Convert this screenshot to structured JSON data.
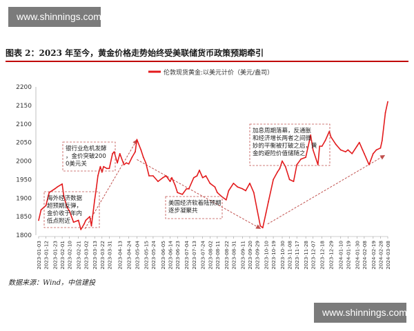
{
  "watermarks": {
    "top": "www.shinnings.com",
    "bottom": "www.shinnings.com"
  },
  "figure_title": "图表 2：2023 年至今，黄金价格走势始终受美联储货币政策预期牵引",
  "source": "数据来源：Wind，中信建投",
  "colors": {
    "line": "#e31a1c",
    "title_rule": "#c00000",
    "annotation_border": "#c0504d",
    "arrow": "#c0504d"
  },
  "annotations": [
    {
      "id": "overseas",
      "text": "海外经济数据超预期反弹，金价收于年内低点附近"
    },
    {
      "id": "bank-crisis",
      "text": "银行业危机发酵，金价突破2000美元关口"
    },
    {
      "id": "soft-landing",
      "text": "美国经济软着陆预期逐步凝聚共"
    },
    {
      "id": "rate-peak",
      "text": "加息周期落幕，反通胀和经济增长两者之间微妙的平衡被打破之后，黄金的避险价值储随之提振。"
    }
  ],
  "chart_data": {
    "type": "line",
    "legend": "伦敦现货黄金:以美元计价（美元/盎司）",
    "legend_position": "top",
    "ylim": [
      1800,
      2200
    ],
    "yticks": [
      1800,
      1850,
      1900,
      1950,
      2000,
      2050,
      2100,
      2150,
      2200
    ],
    "grid": false,
    "xticks": [
      "2023-01-03",
      "2023-01-12",
      "2023-01-23",
      "2023-02-01",
      "2023-02-10",
      "2023-02-21",
      "2023-03-02",
      "2023-03-13",
      "2023-03-22",
      "2023-03-31",
      "2023-04-13",
      "2023-04-24",
      "2023-05-04",
      "2023-05-15",
      "2023-05-24",
      "2023-06-05",
      "2023-06-14",
      "2023-06-23",
      "2023-07-04",
      "2023-07-13",
      "2023-07-24",
      "2023-08-02",
      "2023-08-11",
      "2023-08-22",
      "2023-08-31",
      "2023-09-11",
      "2023-09-20",
      "2023-09-29",
      "2023-10-10",
      "2023-10-19",
      "2023-10-30",
      "2023-11-08",
      "2023-11-17",
      "2023-11-28",
      "2023-12-07",
      "2023-12-18",
      "2023-12-29",
      "2024-01-10",
      "2024-01-19",
      "2024-01-30",
      "2024-02-08",
      "2024-02-19",
      "2024-02-28",
      "2024-03-08"
    ],
    "series": [
      {
        "name": "伦敦现货黄金:以美元计价（美元/盎司）",
        "x": [
          "2023-01-03",
          "2023-01-06",
          "2023-01-12",
          "2023-01-16",
          "2023-01-23",
          "2023-01-26",
          "2023-02-01",
          "2023-02-03",
          "2023-02-07",
          "2023-02-10",
          "2023-02-15",
          "2023-02-21",
          "2023-02-24",
          "2023-02-28",
          "2023-03-02",
          "2023-03-07",
          "2023-03-09",
          "2023-03-13",
          "2023-03-15",
          "2023-03-17",
          "2023-03-20",
          "2023-03-22",
          "2023-03-24",
          "2023-03-28",
          "2023-03-31",
          "2023-04-04",
          "2023-04-06",
          "2023-04-10",
          "2023-04-13",
          "2023-04-18",
          "2023-04-21",
          "2023-04-24",
          "2023-04-28",
          "2023-05-02",
          "2023-05-04",
          "2023-05-09",
          "2023-05-12",
          "2023-05-15",
          "2023-05-19",
          "2023-05-24",
          "2023-05-30",
          "2023-06-05",
          "2023-06-09",
          "2023-06-14",
          "2023-06-16",
          "2023-06-20",
          "2023-06-23",
          "2023-06-29",
          "2023-07-04",
          "2023-07-07",
          "2023-07-13",
          "2023-07-17",
          "2023-07-20",
          "2023-07-24",
          "2023-07-28",
          "2023-08-02",
          "2023-08-08",
          "2023-08-11",
          "2023-08-16",
          "2023-08-22",
          "2023-08-25",
          "2023-08-31",
          "2023-09-05",
          "2023-09-11",
          "2023-09-15",
          "2023-09-20",
          "2023-09-25",
          "2023-09-29",
          "2023-10-03",
          "2023-10-06",
          "2023-10-10",
          "2023-10-13",
          "2023-10-19",
          "2023-10-24",
          "2023-10-27",
          "2023-10-30",
          "2023-11-03",
          "2023-11-08",
          "2023-11-13",
          "2023-11-17",
          "2023-11-22",
          "2023-11-28",
          "2023-12-01",
          "2023-12-04",
          "2023-12-07",
          "2023-12-13",
          "2023-12-15",
          "2023-12-18",
          "2023-12-22",
          "2023-12-27",
          "2023-12-29",
          "2024-01-04",
          "2024-01-10",
          "2024-01-16",
          "2024-01-19",
          "2024-01-24",
          "2024-01-30",
          "2024-02-02",
          "2024-02-06",
          "2024-02-08",
          "2024-02-14",
          "2024-02-19",
          "2024-02-23",
          "2024-02-28",
          "2024-03-01",
          "2024-03-05",
          "2024-03-08"
        ],
        "values": [
          1840,
          1868,
          1880,
          1915,
          1925,
          1930,
          1938,
          1905,
          1875,
          1865,
          1835,
          1840,
          1815,
          1830,
          1840,
          1850,
          1825,
          1895,
          1925,
          1960,
          1985,
          1970,
          1985,
          1980,
          1980,
          2020,
          2025,
          1995,
          2020,
          1990,
          1995,
          1992,
          2010,
          2025,
          2058,
          2030,
          2010,
          1995,
          1960,
          1960,
          1945,
          1955,
          1960,
          1945,
          1955,
          1935,
          1915,
          1910,
          1925,
          1925,
          1955,
          1960,
          1975,
          1955,
          1960,
          1940,
          1930,
          1915,
          1905,
          1895,
          1920,
          1940,
          1930,
          1925,
          1920,
          1940,
          1915,
          1870,
          1825,
          1820,
          1860,
          1890,
          1950,
          1970,
          1980,
          2000,
          1985,
          1950,
          1945,
          1990,
          2005,
          2010,
          2040,
          2070,
          2030,
          1990,
          2040,
          2040,
          2055,
          2080,
          2065,
          2045,
          2030,
          2025,
          2030,
          2020,
          2040,
          2050,
          2030,
          2020,
          1990,
          2020,
          2030,
          2035,
          2055,
          2130,
          2160
        ]
      }
    ]
  }
}
